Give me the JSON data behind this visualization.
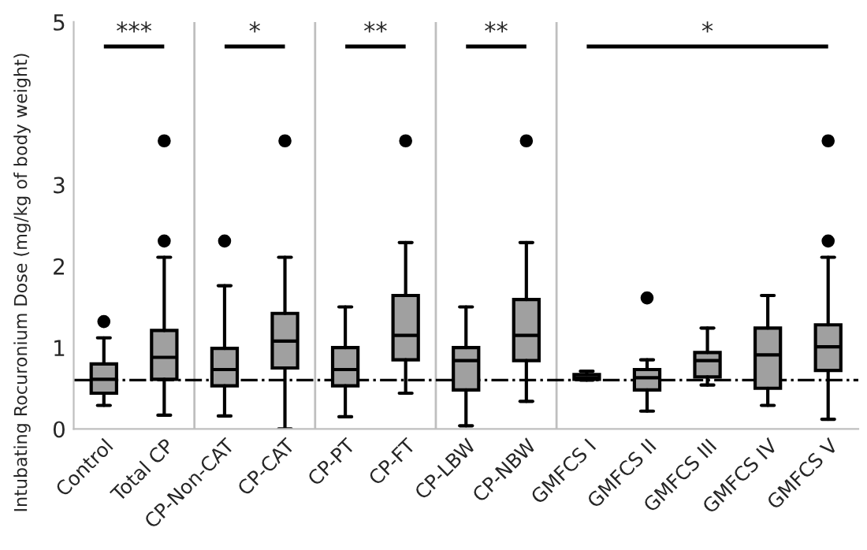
{
  "chart_data": {
    "type": "box",
    "ylabel": "Intubating Rocuronium Dose (mg/kg of body weight)",
    "categories": [
      "Control",
      "Total CP",
      "CP-Non-CAT",
      "CP-CAT",
      "CP-PT",
      "CP-FT",
      "CP-LBW",
      "CP-NBW",
      "GMFCS I",
      "GMFCS II",
      "GMFCS III",
      "GMFCS IV",
      "GMFCS V"
    ],
    "boxes": [
      {
        "low": 0.29,
        "q1": 0.44,
        "median": 0.61,
        "q3": 0.8,
        "high": 1.12,
        "outliers": [
          1.32
        ]
      },
      {
        "low": 0.17,
        "q1": 0.61,
        "median": 0.88,
        "q3": 1.21,
        "high": 2.11,
        "outliers": [
          2.31,
          3.54
        ]
      },
      {
        "low": 0.16,
        "q1": 0.53,
        "median": 0.73,
        "q3": 0.99,
        "high": 1.76,
        "outliers": [
          2.31
        ]
      },
      {
        "low": 0.0,
        "q1": 0.75,
        "median": 1.08,
        "q3": 1.42,
        "high": 2.11,
        "outliers": [
          3.54
        ]
      },
      {
        "low": 0.15,
        "q1": 0.53,
        "median": 0.73,
        "q3": 1.0,
        "high": 1.5
      },
      {
        "low": 0.44,
        "q1": 0.85,
        "median": 1.15,
        "q3": 1.64,
        "high": 2.29,
        "outliers": [
          3.54
        ]
      },
      {
        "low": 0.04,
        "q1": 0.48,
        "median": 0.84,
        "q3": 1.0,
        "high": 1.5
      },
      {
        "low": 0.34,
        "q1": 0.84,
        "median": 1.15,
        "q3": 1.59,
        "high": 2.29,
        "outliers": [
          3.54
        ]
      },
      {
        "low": 0.6,
        "q1": 0.61,
        "median": 0.63,
        "q3": 0.67,
        "high": 0.71
      },
      {
        "low": 0.22,
        "q1": 0.48,
        "median": 0.63,
        "q3": 0.73,
        "high": 0.85,
        "outliers": [
          1.61
        ]
      },
      {
        "low": 0.54,
        "q1": 0.64,
        "median": 0.84,
        "q3": 0.94,
        "high": 1.24
      },
      {
        "low": 0.29,
        "q1": 0.5,
        "median": 0.91,
        "q3": 1.24,
        "high": 1.64
      },
      {
        "low": 0.12,
        "q1": 0.72,
        "median": 1.01,
        "q3": 1.28,
        "high": 2.11,
        "outliers": [
          2.31,
          3.54
        ]
      }
    ],
    "color": "#a0a0a0",
    "ylim": [
      0,
      5
    ],
    "yticks": [
      0,
      1,
      2,
      3,
      5
    ],
    "ref_lines": [
      {
        "axis": "y",
        "value": 0.6,
        "color": "#000000",
        "line_style": "dashdot"
      }
    ],
    "annotations": [
      "***",
      "*",
      "**",
      "**",
      "*"
    ],
    "grid": false,
    "legend": false
  }
}
